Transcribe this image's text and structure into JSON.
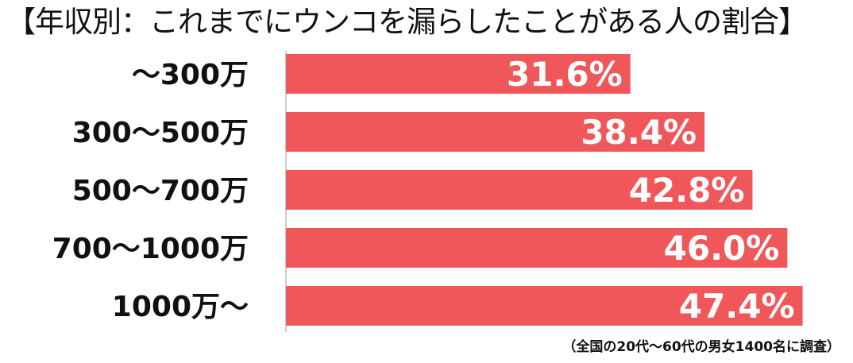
{
  "chart_data": {
    "type": "bar",
    "orientation": "horizontal",
    "title": "【年収別：これまでにウンコを漏らしたことがある人の割合】",
    "categories": [
      "～300万",
      "300～500万",
      "500～700万",
      "700～1000万",
      "1000万～"
    ],
    "values": [
      31.6,
      38.4,
      42.8,
      46.0,
      47.4
    ],
    "value_labels": [
      "31.6%",
      "38.4%",
      "42.8%",
      "46.0%",
      "47.4%"
    ],
    "unit": "%",
    "xlim": [
      0,
      51
    ],
    "grid": false,
    "legend": "none",
    "annotation": "（全国の20代～60代の男女1400名に調査）",
    "colors": {
      "bar": "#f0575b",
      "value_text": "#ffffff",
      "category_text": "#111111",
      "axis": "#bbbbbb"
    }
  }
}
